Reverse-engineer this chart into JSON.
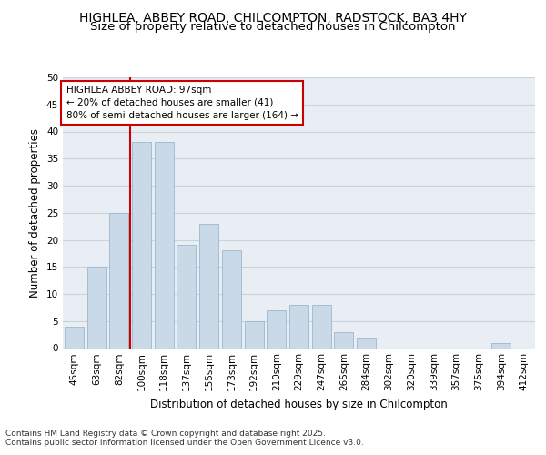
{
  "title_line1": "HIGHLEA, ABBEY ROAD, CHILCOMPTON, RADSTOCK, BA3 4HY",
  "title_line2": "Size of property relative to detached houses in Chilcompton",
  "xlabel": "Distribution of detached houses by size in Chilcompton",
  "ylabel": "Number of detached properties",
  "categories": [
    "45sqm",
    "63sqm",
    "82sqm",
    "100sqm",
    "118sqm",
    "137sqm",
    "155sqm",
    "173sqm",
    "192sqm",
    "210sqm",
    "229sqm",
    "247sqm",
    "265sqm",
    "284sqm",
    "302sqm",
    "320sqm",
    "339sqm",
    "357sqm",
    "375sqm",
    "394sqm",
    "412sqm"
  ],
  "values": [
    4,
    15,
    25,
    38,
    38,
    19,
    23,
    18,
    5,
    7,
    8,
    8,
    3,
    2,
    0,
    0,
    0,
    0,
    0,
    1,
    0
  ],
  "bar_color": "#c9d9e8",
  "bar_edge_color": "#9ab8cc",
  "bar_width": 0.85,
  "vline_color": "#cc0000",
  "vline_x_index": 2.5,
  "annotation_line1": "HIGHLEA ABBEY ROAD: 97sqm",
  "annotation_line2": "← 20% of detached houses are smaller (41)",
  "annotation_line3": "80% of semi-detached houses are larger (164) →",
  "annotation_box_color": "#cc0000",
  "ylim": [
    0,
    50
  ],
  "yticks": [
    0,
    5,
    10,
    15,
    20,
    25,
    30,
    35,
    40,
    45,
    50
  ],
  "grid_color": "#c8d4dc",
  "background_color": "#e8eef4",
  "footnote_line1": "Contains HM Land Registry data © Crown copyright and database right 2025.",
  "footnote_line2": "Contains public sector information licensed under the Open Government Licence v3.0.",
  "title_fontsize": 10,
  "subtitle_fontsize": 9.5,
  "axis_label_fontsize": 8.5,
  "tick_fontsize": 7.5,
  "annotation_fontsize": 7.5,
  "footnote_fontsize": 6.5
}
